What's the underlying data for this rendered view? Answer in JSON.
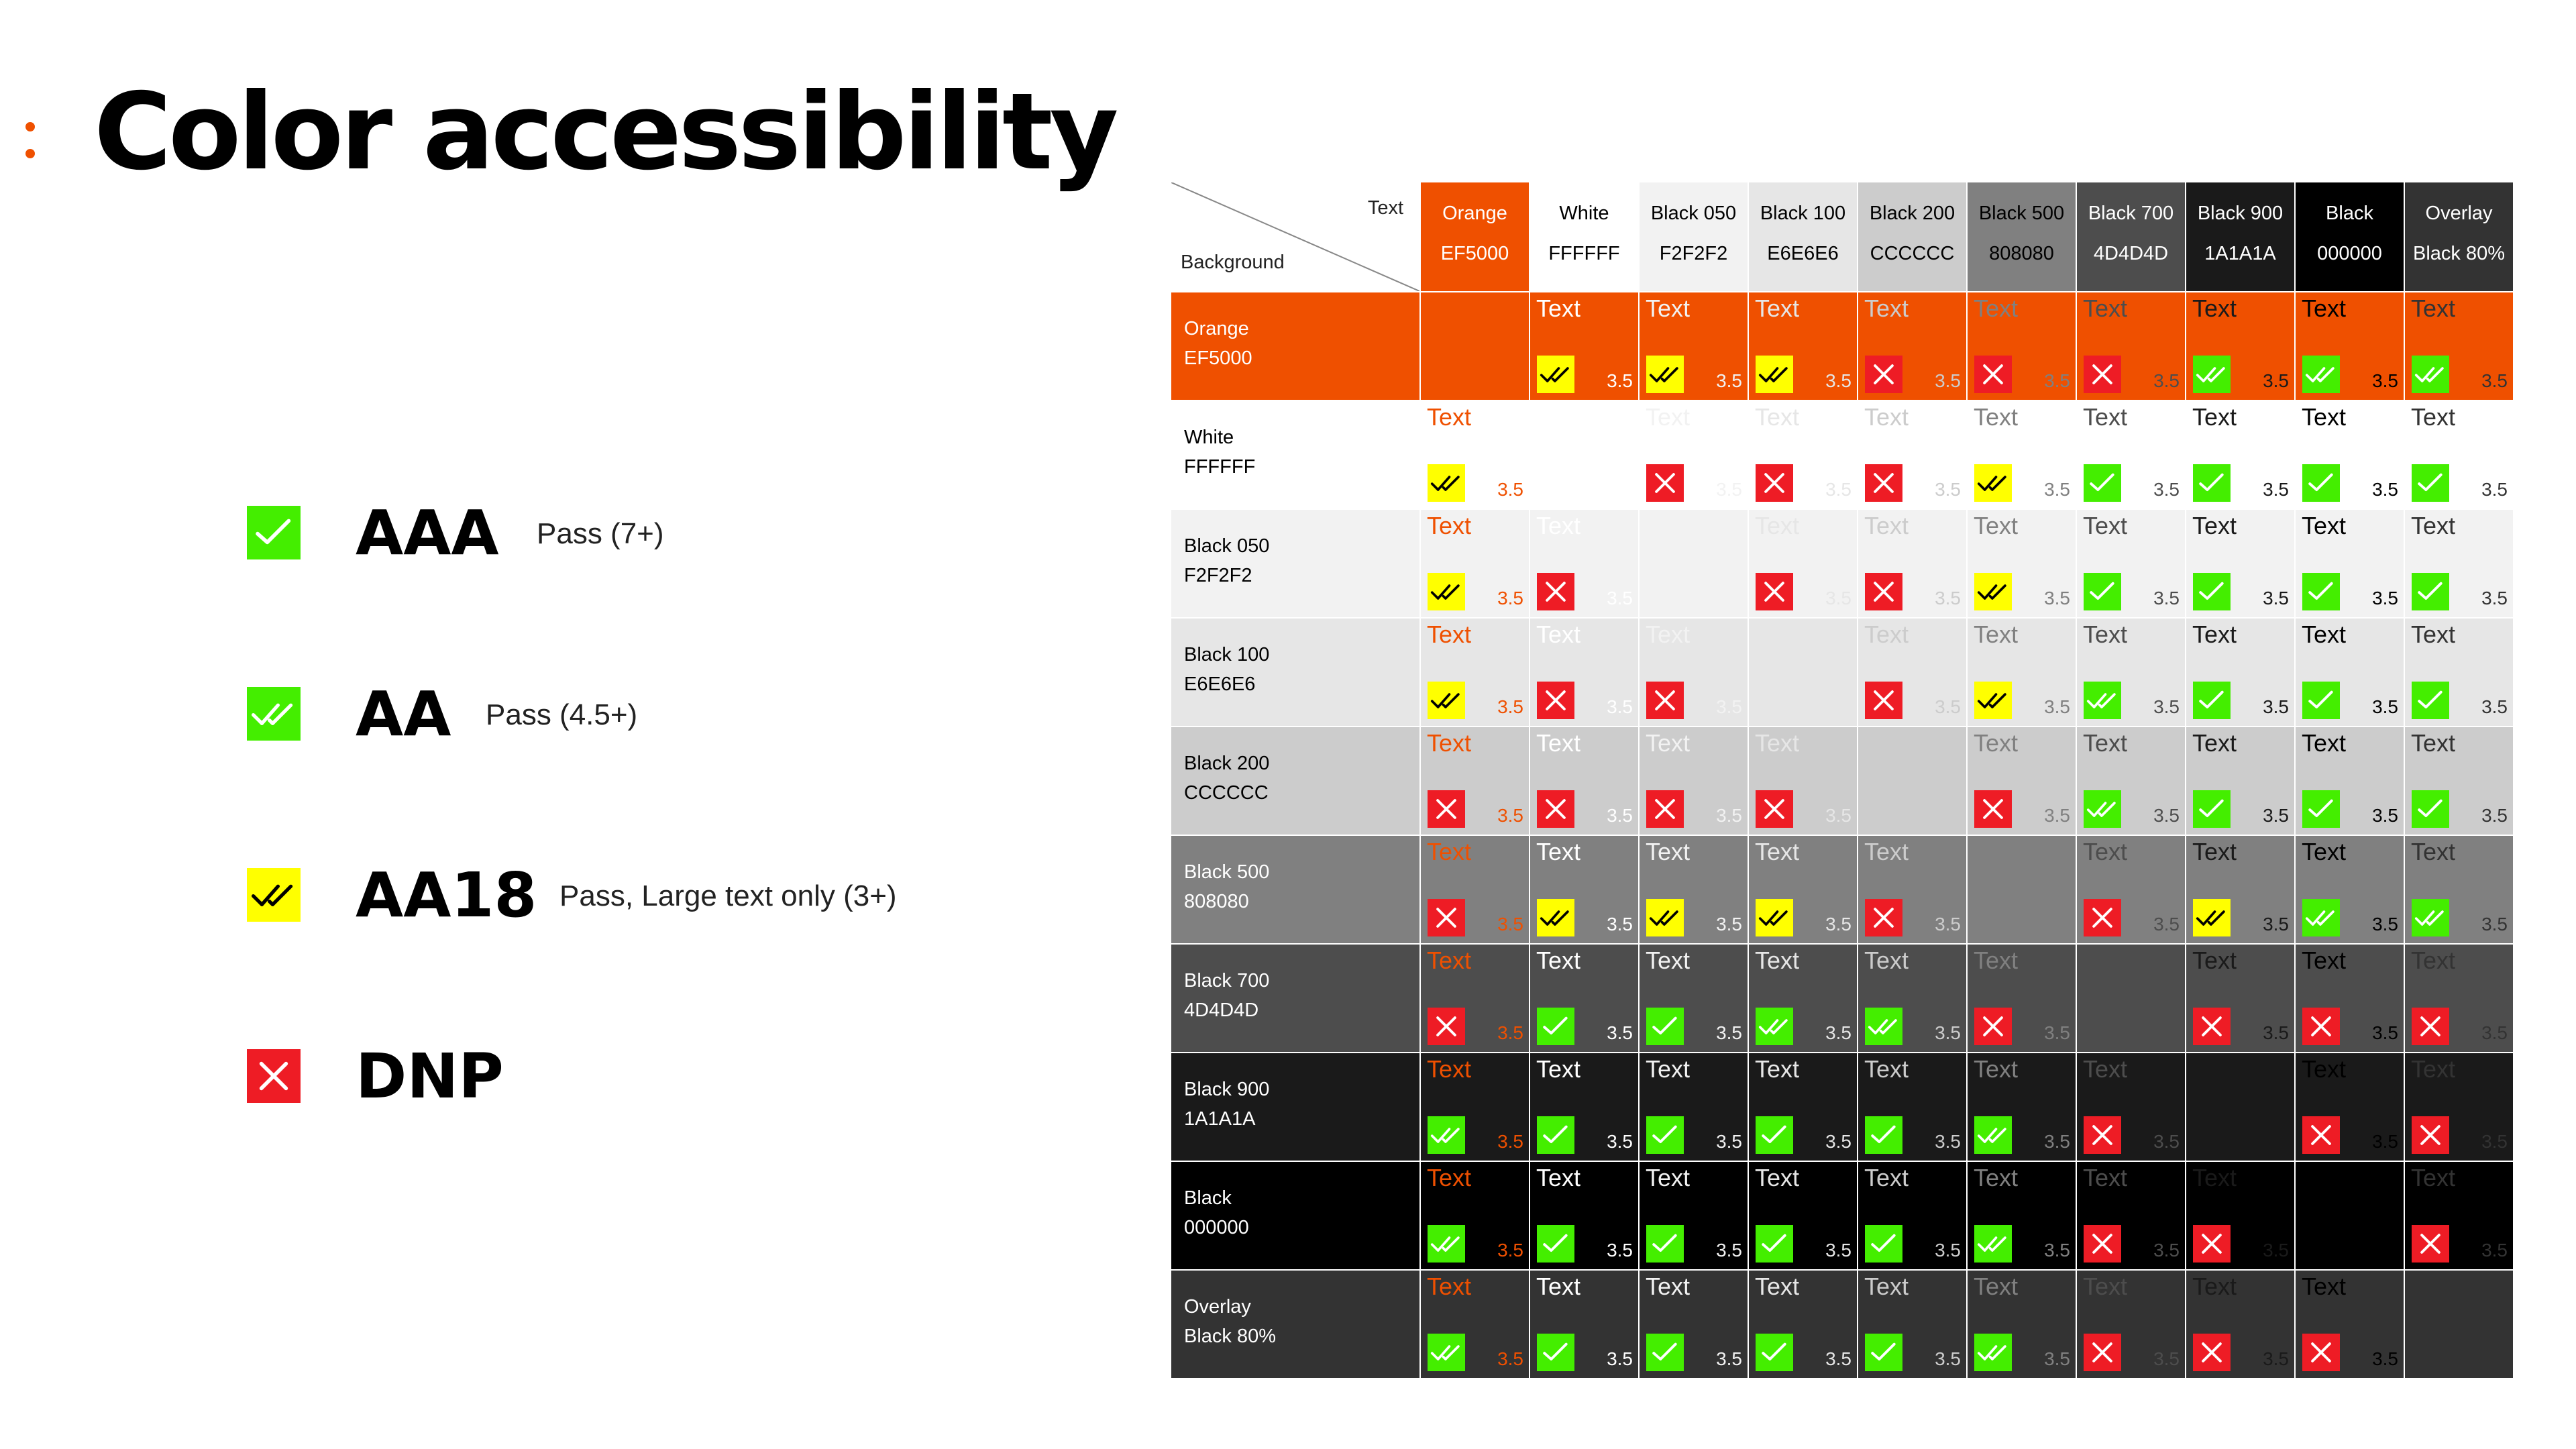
{
  "page": {
    "title": "Color accessibility"
  },
  "legend": [
    {
      "status": "aaa",
      "code": "AAA",
      "desc": "Pass (7+)"
    },
    {
      "status": "aa",
      "code": "AA",
      "desc": "Pass (4.5+)"
    },
    {
      "status": "aa18",
      "code": "AA18",
      "desc": "Pass, Large text only (3+)"
    },
    {
      "status": "dnp",
      "code": "DNP",
      "desc": ""
    }
  ],
  "icons": {
    "aaa": "single-check-icon",
    "aa": "double-check-icon",
    "aa18": "double-check-icon",
    "dnp": "x-mark-icon"
  },
  "status_colors": {
    "aaa": "#44EE00",
    "aa": "#44EE00",
    "aa18": "#FFFF00",
    "dnp": "#EE1C25"
  },
  "matrix": {
    "corner_text": "Text",
    "corner_background": "Background",
    "cell_text": "Text",
    "ratio": "3.5",
    "colors": [
      {
        "name": "Orange",
        "hex": "EF5000",
        "color": "#EF5000",
        "header_text": "#FFFFFF"
      },
      {
        "name": "White",
        "hex": "FFFFFF",
        "color": "#FFFFFF",
        "header_text": "#000000"
      },
      {
        "name": "Black 050",
        "hex": "F2F2F2",
        "color": "#F2F2F2",
        "header_text": "#000000"
      },
      {
        "name": "Black 100",
        "hex": "E6E6E6",
        "color": "#E6E6E6",
        "header_text": "#000000"
      },
      {
        "name": "Black 200",
        "hex": "CCCCCC",
        "color": "#CCCCCC",
        "header_text": "#000000"
      },
      {
        "name": "Black 500",
        "hex": "808080",
        "color": "#808080",
        "header_text": "#000000"
      },
      {
        "name": "Black 700",
        "hex": "4D4D4D",
        "color": "#4D4D4D",
        "header_text": "#FFFFFF"
      },
      {
        "name": "Black 900",
        "hex": "1A1A1A",
        "color": "#1A1A1A",
        "header_text": "#FFFFFF"
      },
      {
        "name": "Black",
        "hex": "000000",
        "color": "#000000",
        "header_text": "#FFFFFF"
      },
      {
        "name": "Overlay",
        "hex": "Black 80%",
        "color": "#333333",
        "header_text": "#FFFFFF"
      }
    ],
    "cells": [
      [
        null,
        "aa18",
        "aa18",
        "aa18",
        "dnp",
        "dnp",
        "dnp",
        "aa",
        "aa",
        "aa"
      ],
      [
        "aa18",
        null,
        "dnp",
        "dnp",
        "dnp",
        "aa18",
        "aaa",
        "aaa",
        "aaa",
        "aaa"
      ],
      [
        "aa18",
        "dnp",
        null,
        "dnp",
        "dnp",
        "aa18",
        "aaa",
        "aaa",
        "aaa",
        "aaa"
      ],
      [
        "aa18",
        "dnp",
        "dnp",
        null,
        "dnp",
        "aa18",
        "aa",
        "aaa",
        "aaa",
        "aaa"
      ],
      [
        "dnp",
        "dnp",
        "dnp",
        "dnp",
        null,
        "dnp",
        "aa",
        "aaa",
        "aaa",
        "aaa"
      ],
      [
        "dnp",
        "aa18",
        "aa18",
        "aa18",
        "dnp",
        null,
        "dnp",
        "aa18",
        "aa",
        "aa"
      ],
      [
        "dnp",
        "aaa",
        "aaa",
        "aa",
        "aa",
        "dnp",
        null,
        "dnp",
        "dnp",
        "dnp"
      ],
      [
        "aa",
        "aaa",
        "aaa",
        "aaa",
        "aaa",
        "aa",
        "dnp",
        null,
        "dnp",
        "dnp"
      ],
      [
        "aa",
        "aaa",
        "aaa",
        "aaa",
        "aaa",
        "aa",
        "dnp",
        "dnp",
        null,
        "dnp"
      ],
      [
        "aa",
        "aaa",
        "aaa",
        "aaa",
        "aaa",
        "aa",
        "dnp",
        "dnp",
        "dnp",
        null
      ]
    ]
  }
}
